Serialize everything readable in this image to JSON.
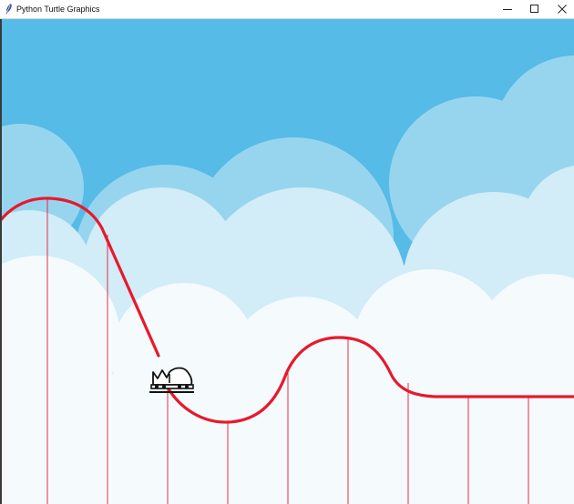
{
  "window": {
    "title": "Python Turtle Graphics",
    "app_icon": "feather-icon",
    "controls": [
      "minimize-icon",
      "maximize-icon",
      "close-icon"
    ]
  },
  "canvas": {
    "sky_color": "#56bbe6",
    "cloud_colors": [
      "#97d5ef",
      "#d2ecf8",
      "#f5fafd"
    ],
    "track_color": "#e8192c",
    "support_color": "#e8192c",
    "cart_icon": "roller-coaster-car-icon"
  }
}
